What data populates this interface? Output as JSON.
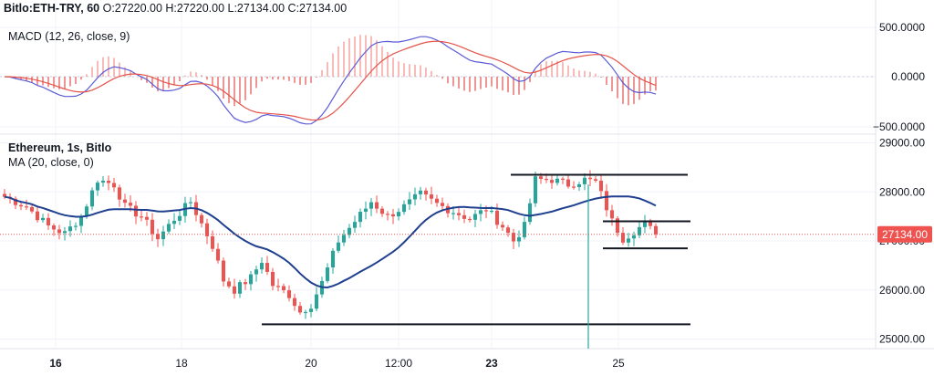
{
  "header": {
    "symbol": "Bitlo:ETH-TRY, 60",
    "ohlc": "O:27220.00 H:27220.00 L:27134.00 C:27134.00"
  },
  "macd": {
    "label": "MACD (12, 26, close, 9)",
    "ticks": [
      "500.0000",
      "0.0000",
      "−500.0000"
    ]
  },
  "main": {
    "title": "Ethereum, 1s, Bitlo",
    "ma_label": "MA (20, close, 0)",
    "ticks": [
      "29000.00",
      "28000.00",
      "27000.00",
      "26000.00",
      "25000.00"
    ],
    "last_price": "27134.00"
  },
  "time_axis": {
    "labels": [
      {
        "text": "16",
        "bold": true
      },
      {
        "text": "18",
        "bold": false
      },
      {
        "text": "20",
        "bold": false
      },
      {
        "text": "12:00",
        "bold": false
      },
      {
        "text": "23",
        "bold": true
      },
      {
        "text": "25",
        "bold": false
      }
    ]
  },
  "colors": {
    "up": "#26a69a",
    "down": "#ef5350",
    "ma": "#1f3f8f",
    "macd_line": "#5b5bd6",
    "signal_line": "#e5544a",
    "price_tag": "#ef5350"
  },
  "chart_data": {
    "type": "candlestick",
    "x_labels": [
      "16",
      "18",
      "20",
      "12:00",
      "23",
      "25"
    ],
    "price_range": [
      24850,
      29150
    ],
    "price_path": [
      [
        0,
        27900
      ],
      [
        4,
        27700
      ],
      [
        8,
        27300
      ],
      [
        11,
        27150
      ],
      [
        14,
        27500
      ],
      [
        17,
        28250
      ],
      [
        20,
        28150
      ],
      [
        22,
        27700
      ],
      [
        25,
        27500
      ],
      [
        28,
        27050
      ],
      [
        31,
        27450
      ],
      [
        34,
        27800
      ],
      [
        36,
        27350
      ],
      [
        38,
        26900
      ],
      [
        40,
        26200
      ],
      [
        42,
        26000
      ],
      [
        45,
        26250
      ],
      [
        47,
        26600
      ],
      [
        49,
        26100
      ],
      [
        52,
        25900
      ],
      [
        54,
        25550
      ],
      [
        56,
        25700
      ],
      [
        58,
        26150
      ],
      [
        61,
        27000
      ],
      [
        64,
        27400
      ],
      [
        67,
        27800
      ],
      [
        70,
        27500
      ],
      [
        73,
        27700
      ],
      [
        76,
        27950
      ],
      [
        79,
        27750
      ],
      [
        82,
        27600
      ],
      [
        85,
        27450
      ],
      [
        88,
        27650
      ],
      [
        91,
        27300
      ],
      [
        93,
        27000
      ],
      [
        95,
        27300
      ],
      [
        97,
        28250
      ],
      [
        100,
        28250
      ],
      [
        103,
        28150
      ],
      [
        106,
        28250
      ],
      [
        108,
        28200
      ],
      [
        109,
        27950
      ],
      [
        111,
        27400
      ],
      [
        113,
        27050
      ],
      [
        115,
        27200
      ],
      [
        117,
        27350
      ],
      [
        119,
        27134
      ]
    ],
    "support_resistance_lines": [
      28350,
      27400,
      26850,
      25300
    ],
    "macd_range": [
      -540,
      540
    ]
  }
}
